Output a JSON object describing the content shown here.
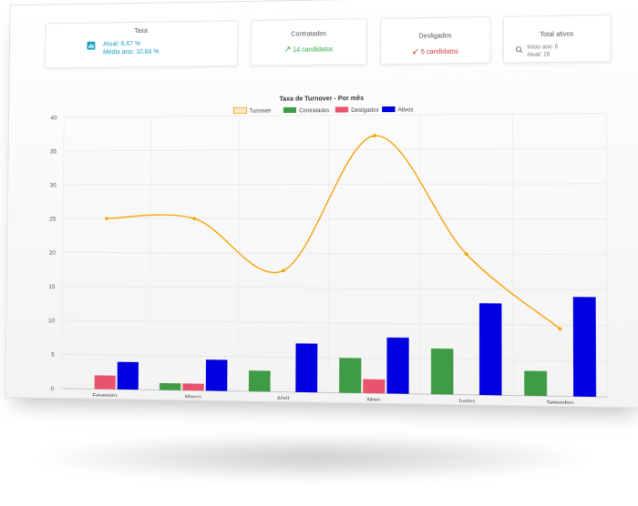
{
  "cards": {
    "taxa": {
      "title": "Taxa",
      "atual_label": "Atual:",
      "atual_value": "6.67 %",
      "media_label": "Média ano:",
      "media_value": "10.84 %"
    },
    "contratados": {
      "title": "Contratados",
      "value": "14 candidatos"
    },
    "desligados": {
      "title": "Desligados",
      "value": "5 candidatos"
    },
    "total": {
      "title": "Total ativos",
      "inicio": "Inicio ano: 5",
      "atual": "Atual: 16"
    }
  },
  "colors": {
    "turnover": "#f5a000",
    "contratados": "#3f9b45",
    "desligados": "#e8546e",
    "ativos": "#0000e0",
    "teal": "#1a9fc2"
  },
  "chart_data": {
    "type": "bar",
    "title": "Taxa de Turnover - Por mês",
    "legend_position": "top-center",
    "ylim": [
      0,
      40
    ],
    "yticks": [
      0,
      5,
      10,
      15,
      20,
      25,
      30,
      35,
      40
    ],
    "categories": [
      "Fevereiro",
      "Março",
      "Abril",
      "Maio",
      "Junho",
      "Setembro"
    ],
    "series": [
      {
        "name": "Turnover",
        "type": "line",
        "values": [
          25,
          25,
          17.5,
          37,
          20,
          9.5
        ]
      },
      {
        "name": "Contratados",
        "type": "bar",
        "values": [
          0,
          1,
          3,
          5,
          6.5,
          3.5
        ]
      },
      {
        "name": "Desligados",
        "type": "bar",
        "values": [
          2,
          1,
          0,
          2,
          0,
          0
        ]
      },
      {
        "name": "Ativos",
        "type": "bar",
        "values": [
          4,
          4.5,
          7,
          8,
          13,
          14
        ]
      }
    ],
    "grid": true
  }
}
